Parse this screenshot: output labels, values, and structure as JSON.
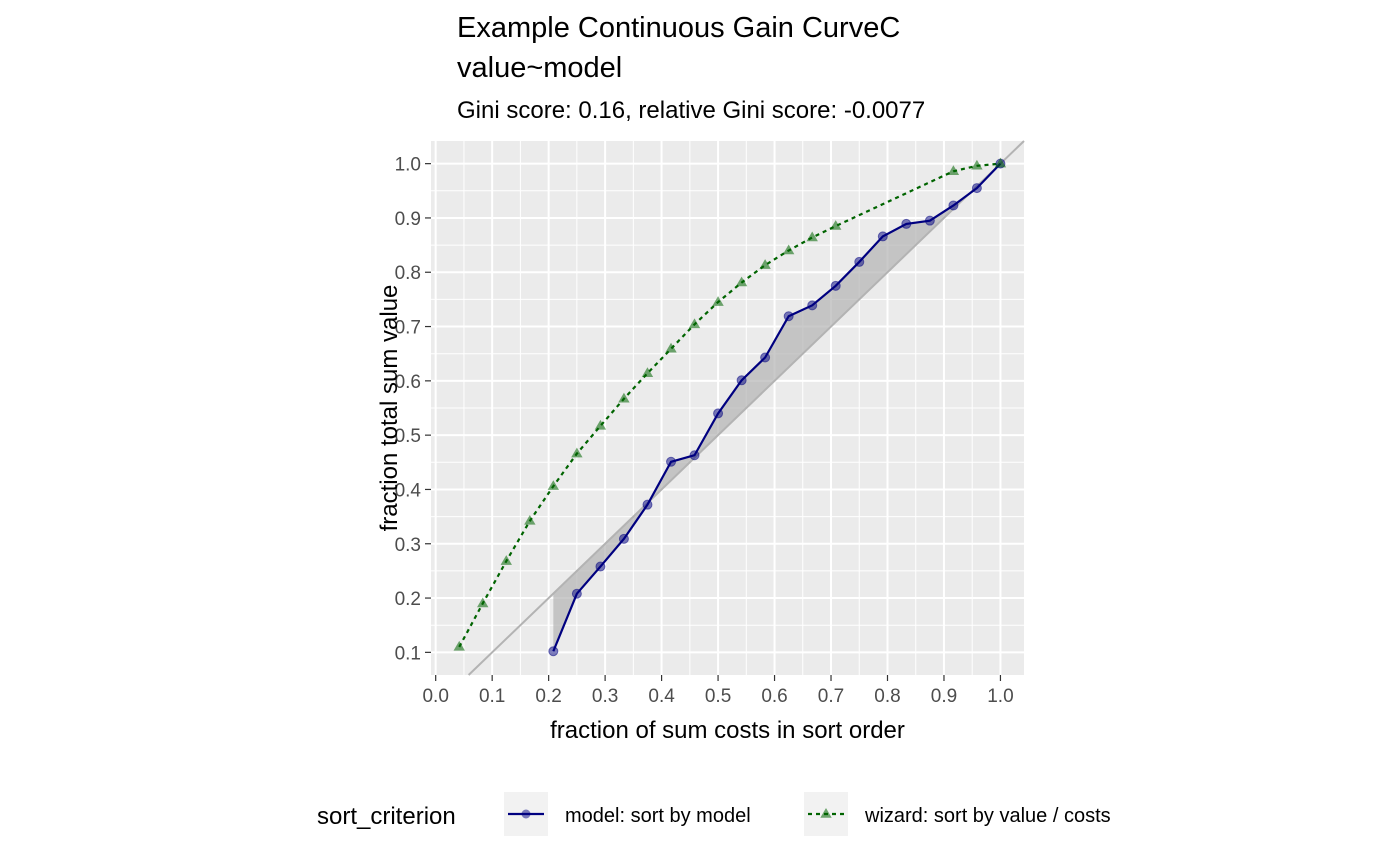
{
  "chart_data": {
    "type": "line",
    "title_line1": "Example Continuous Gain CurveC",
    "title_line2": "value~model",
    "subtitle": "Gini score: 0.16, relative Gini score: -0.0077",
    "xlabel": "fraction of sum costs  in sort order",
    "ylabel": "fraction total sum value",
    "xlim": [
      -0.0083,
      1.0417
    ],
    "ylim": [
      0.0583,
      1.0417
    ],
    "x_ticks": [
      "0.0",
      "0.1",
      "0.2",
      "0.3",
      "0.4",
      "0.5",
      "0.6",
      "0.7",
      "0.8",
      "0.9",
      "1.0"
    ],
    "y_ticks": [
      "0.1",
      "0.2",
      "0.3",
      "0.4",
      "0.5",
      "0.6",
      "0.7",
      "0.8",
      "0.9",
      "1.0"
    ],
    "grid": true,
    "legend": {
      "title": "sort_criterion",
      "position": "bottom",
      "entries": [
        "model: sort by model",
        "wizard: sort by  value / costs"
      ]
    },
    "colors": {
      "model": "#000080",
      "wizard": "#006400",
      "diagonal": "#b3b3b3",
      "ribbon": "#b3b3b3",
      "panel": "#ebebeb"
    },
    "series": [
      {
        "name": "model: sort by model",
        "style": "solid",
        "marker": "circle",
        "x": [
          0.2083,
          0.25,
          0.2917,
          0.3333,
          0.375,
          0.4167,
          0.4583,
          0.5,
          0.5417,
          0.5833,
          0.625,
          0.6667,
          0.7083,
          0.75,
          0.7917,
          0.8333,
          0.875,
          0.9167,
          0.9583,
          1.0
        ],
        "y": [
          0.102,
          0.208,
          0.258,
          0.309,
          0.372,
          0.451,
          0.463,
          0.54,
          0.601,
          0.643,
          0.719,
          0.739,
          0.775,
          0.819,
          0.866,
          0.889,
          0.895,
          0.923,
          0.955,
          1.0
        ]
      },
      {
        "name": "wizard: sort by  value / costs",
        "style": "dotted",
        "marker": "triangle",
        "x": [
          0.0417,
          0.0833,
          0.125,
          0.1667,
          0.2083,
          0.25,
          0.2917,
          0.3333,
          0.375,
          0.4167,
          0.4583,
          0.5,
          0.5417,
          0.5833,
          0.625,
          0.6667,
          0.7083,
          0.9167,
          0.9583,
          1.0
        ],
        "y": [
          0.11,
          0.19,
          0.268,
          0.342,
          0.406,
          0.466,
          0.517,
          0.567,
          0.614,
          0.659,
          0.704,
          0.745,
          0.781,
          0.813,
          0.84,
          0.864,
          0.885,
          0.986,
          0.996,
          1.0
        ]
      }
    ]
  }
}
